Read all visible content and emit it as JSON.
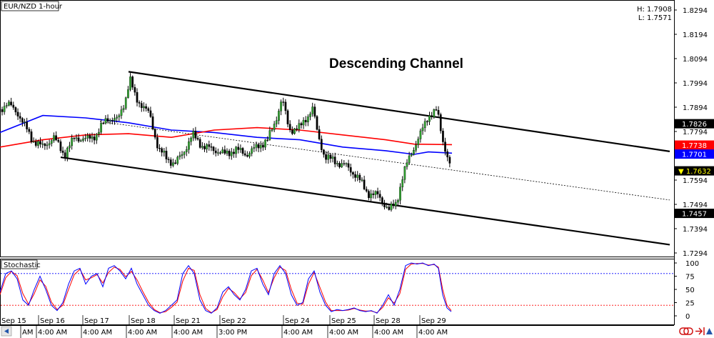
{
  "chart_data": {
    "type": "candlestick",
    "symbol_label": "EUR/NZD 1-hour",
    "hl_label": {
      "high": "H: 1.7908",
      "low": "L: 1.7571"
    },
    "title": "Descending Channel",
    "price_axis": {
      "ticks": [
        "1.8294",
        "1.8194",
        "1.8094",
        "1.7994",
        "1.7894",
        "1.7794",
        "1.7594",
        "1.7494",
        "1.7394",
        "1.7294"
      ],
      "ylim": [
        1.726,
        1.832
      ]
    },
    "price_tags": [
      {
        "text": "1.7826",
        "value": 1.7826,
        "bg": "#000000",
        "fg": "#ffffff"
      },
      {
        "text": "1.7738",
        "value": 1.7738,
        "bg": "#ff0000",
        "fg": "#ffffff"
      },
      {
        "text": "1.7701",
        "value": 1.7701,
        "bg": "#0000ff",
        "fg": "#ffffff"
      },
      {
        "text": "▼ 1.7632",
        "value": 1.7632,
        "bg": "#000000",
        "fg": "#ffff00"
      },
      {
        "text": "1.7457",
        "value": 1.7457,
        "bg": "#000000",
        "fg": "#ffffff"
      }
    ],
    "date_labels": [
      "Sep 15",
      "Sep 16",
      "Sep 17",
      "Sep 18",
      "Sep 21",
      "Sep 22",
      "Sep 24",
      "Sep 25",
      "Sep 28",
      "Sep 29"
    ],
    "time_labels": [
      "4:00 AM",
      "4:00 AM",
      "4:00 AM",
      "4:00 AM",
      "3:00 PM",
      "4:00 AM",
      "4:00 AM",
      "4:00 AM",
      "4:00 AM"
    ],
    "time_label_partial": "AM",
    "moving_averages": [
      {
        "color": "#0000ff",
        "points": [
          [
            0,
            1.779
          ],
          [
            60,
            1.786
          ],
          [
            120,
            1.785
          ],
          [
            180,
            1.783
          ],
          [
            240,
            1.78
          ],
          [
            300,
            1.779
          ],
          [
            360,
            1.777
          ],
          [
            420,
            1.776
          ],
          [
            480,
            1.773
          ],
          [
            540,
            1.7715
          ],
          [
            580,
            1.77
          ],
          [
            600,
            1.771
          ],
          [
            633,
            1.7705
          ]
        ]
      },
      {
        "color": "#ff0000",
        "points": [
          [
            0,
            1.773
          ],
          [
            60,
            1.776
          ],
          [
            120,
            1.778
          ],
          [
            180,
            1.7785
          ],
          [
            240,
            1.777
          ],
          [
            300,
            1.78
          ],
          [
            360,
            1.781
          ],
          [
            420,
            1.78
          ],
          [
            480,
            1.778
          ],
          [
            540,
            1.776
          ],
          [
            580,
            1.7742
          ],
          [
            633,
            1.774
          ]
        ]
      }
    ],
    "channel_lines": [
      {
        "from": [
          180,
          1.804
        ],
        "to": [
          938,
          1.7712
        ],
        "dashed": false
      },
      {
        "from": [
          85,
          1.7688
        ],
        "to": [
          938,
          1.7328
        ],
        "dashed": false
      },
      {
        "from": [
          140,
          1.7835
        ],
        "to": [
          938,
          1.7512
        ],
        "dashed": true
      }
    ],
    "price_path": [
      [
        0,
        1.7885
      ],
      [
        10,
        1.791
      ],
      [
        25,
        1.787
      ],
      [
        45,
        1.776
      ],
      [
        60,
        1.773
      ],
      [
        75,
        1.777
      ],
      [
        90,
        1.77
      ],
      [
        105,
        1.777
      ],
      [
        120,
        1.776
      ],
      [
        135,
        1.778
      ],
      [
        150,
        1.785
      ],
      [
        165,
        1.784
      ],
      [
        175,
        1.792
      ],
      [
        182,
        1.801
      ],
      [
        190,
        1.793
      ],
      [
        200,
        1.79
      ],
      [
        210,
        1.786
      ],
      [
        222,
        1.772
      ],
      [
        235,
        1.768
      ],
      [
        245,
        1.766
      ],
      [
        255,
        1.77
      ],
      [
        270,
        1.778
      ],
      [
        285,
        1.773
      ],
      [
        300,
        1.772
      ],
      [
        315,
        1.77
      ],
      [
        330,
        1.772
      ],
      [
        345,
        1.77
      ],
      [
        360,
        1.773
      ],
      [
        375,
        1.776
      ],
      [
        385,
        1.783
      ],
      [
        395,
        1.793
      ],
      [
        405,
        1.78
      ],
      [
        420,
        1.781
      ],
      [
        438,
        1.789
      ],
      [
        445,
        1.778
      ],
      [
        455,
        1.769
      ],
      [
        470,
        1.767
      ],
      [
        485,
        1.765
      ],
      [
        500,
        1.761
      ],
      [
        515,
        1.754
      ],
      [
        530,
        1.753
      ],
      [
        545,
        1.747
      ],
      [
        555,
        1.75
      ],
      [
        565,
        1.762
      ],
      [
        575,
        1.77
      ],
      [
        590,
        1.779
      ],
      [
        600,
        1.786
      ],
      [
        612,
        1.788
      ],
      [
        620,
        1.776
      ],
      [
        626,
        1.77
      ],
      [
        632,
        1.7632
      ]
    ],
    "stochastic": {
      "label": "Stochastic",
      "ticks": [
        "100",
        "75",
        "50",
        "25",
        "0"
      ],
      "levels": [
        80,
        20
      ],
      "k_color": "#0000ff",
      "d_color": "#ff0000",
      "k": [
        [
          0,
          45
        ],
        [
          8,
          80
        ],
        [
          16,
          85
        ],
        [
          24,
          70
        ],
        [
          32,
          30
        ],
        [
          40,
          20
        ],
        [
          48,
          50
        ],
        [
          56,
          75
        ],
        [
          64,
          50
        ],
        [
          72,
          20
        ],
        [
          80,
          10
        ],
        [
          88,
          25
        ],
        [
          96,
          60
        ],
        [
          104,
          85
        ],
        [
          112,
          90
        ],
        [
          120,
          60
        ],
        [
          128,
          75
        ],
        [
          136,
          80
        ],
        [
          144,
          55
        ],
        [
          152,
          90
        ],
        [
          160,
          95
        ],
        [
          168,
          85
        ],
        [
          176,
          70
        ],
        [
          184,
          90
        ],
        [
          192,
          60
        ],
        [
          200,
          40
        ],
        [
          208,
          20
        ],
        [
          216,
          10
        ],
        [
          224,
          5
        ],
        [
          232,
          10
        ],
        [
          240,
          20
        ],
        [
          248,
          30
        ],
        [
          256,
          80
        ],
        [
          264,
          95
        ],
        [
          272,
          80
        ],
        [
          280,
          30
        ],
        [
          288,
          10
        ],
        [
          296,
          5
        ],
        [
          304,
          15
        ],
        [
          312,
          45
        ],
        [
          320,
          55
        ],
        [
          328,
          40
        ],
        [
          336,
          30
        ],
        [
          344,
          50
        ],
        [
          352,
          85
        ],
        [
          360,
          90
        ],
        [
          368,
          60
        ],
        [
          376,
          40
        ],
        [
          384,
          80
        ],
        [
          392,
          95
        ],
        [
          400,
          80
        ],
        [
          408,
          40
        ],
        [
          416,
          20
        ],
        [
          424,
          25
        ],
        [
          432,
          70
        ],
        [
          440,
          85
        ],
        [
          448,
          45
        ],
        [
          456,
          20
        ],
        [
          464,
          8
        ],
        [
          472,
          12
        ],
        [
          480,
          10
        ],
        [
          488,
          12
        ],
        [
          496,
          15
        ],
        [
          504,
          10
        ],
        [
          512,
          8
        ],
        [
          520,
          10
        ],
        [
          528,
          5
        ],
        [
          536,
          20
        ],
        [
          544,
          40
        ],
        [
          552,
          20
        ],
        [
          560,
          50
        ],
        [
          568,
          95
        ],
        [
          576,
          100
        ],
        [
          584,
          98
        ],
        [
          592,
          100
        ],
        [
          600,
          95
        ],
        [
          608,
          98
        ],
        [
          614,
          90
        ],
        [
          620,
          40
        ],
        [
          626,
          15
        ],
        [
          632,
          8
        ]
      ],
      "d": [
        [
          0,
          40
        ],
        [
          8,
          72
        ],
        [
          16,
          84
        ],
        [
          24,
          76
        ],
        [
          32,
          42
        ],
        [
          40,
          22
        ],
        [
          48,
          42
        ],
        [
          56,
          68
        ],
        [
          64,
          56
        ],
        [
          72,
          26
        ],
        [
          80,
          12
        ],
        [
          88,
          20
        ],
        [
          96,
          50
        ],
        [
          104,
          78
        ],
        [
          112,
          88
        ],
        [
          120,
          68
        ],
        [
          128,
          72
        ],
        [
          136,
          78
        ],
        [
          144,
          62
        ],
        [
          152,
          82
        ],
        [
          160,
          92
        ],
        [
          168,
          88
        ],
        [
          176,
          74
        ],
        [
          184,
          84
        ],
        [
          192,
          68
        ],
        [
          200,
          46
        ],
        [
          208,
          26
        ],
        [
          216,
          12
        ],
        [
          224,
          6
        ],
        [
          232,
          8
        ],
        [
          240,
          16
        ],
        [
          248,
          26
        ],
        [
          256,
          66
        ],
        [
          264,
          90
        ],
        [
          272,
          86
        ],
        [
          280,
          40
        ],
        [
          288,
          14
        ],
        [
          296,
          6
        ],
        [
          304,
          12
        ],
        [
          312,
          36
        ],
        [
          320,
          52
        ],
        [
          328,
          44
        ],
        [
          336,
          32
        ],
        [
          344,
          44
        ],
        [
          352,
          76
        ],
        [
          360,
          88
        ],
        [
          368,
          68
        ],
        [
          376,
          44
        ],
        [
          384,
          72
        ],
        [
          392,
          92
        ],
        [
          400,
          86
        ],
        [
          408,
          50
        ],
        [
          416,
          24
        ],
        [
          424,
          22
        ],
        [
          432,
          60
        ],
        [
          440,
          82
        ],
        [
          448,
          54
        ],
        [
          456,
          26
        ],
        [
          464,
          10
        ],
        [
          472,
          10
        ],
        [
          480,
          10
        ],
        [
          488,
          11
        ],
        [
          496,
          14
        ],
        [
          504,
          11
        ],
        [
          512,
          9
        ],
        [
          520,
          9
        ],
        [
          528,
          6
        ],
        [
          536,
          16
        ],
        [
          544,
          34
        ],
        [
          552,
          24
        ],
        [
          560,
          42
        ],
        [
          568,
          88
        ],
        [
          576,
          98
        ],
        [
          584,
          99
        ],
        [
          592,
          99
        ],
        [
          600,
          96
        ],
        [
          608,
          97
        ],
        [
          614,
          92
        ],
        [
          620,
          50
        ],
        [
          626,
          20
        ],
        [
          632,
          10
        ]
      ]
    }
  }
}
